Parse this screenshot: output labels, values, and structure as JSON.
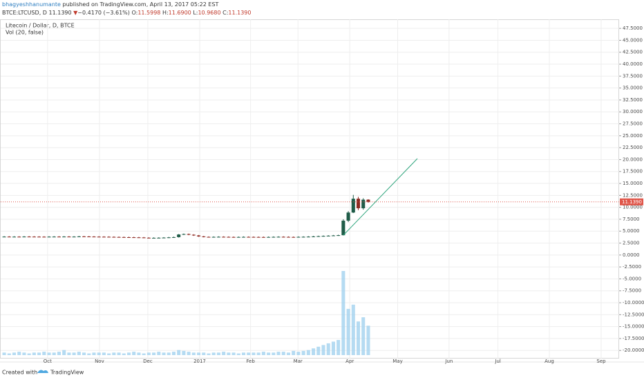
{
  "header": {
    "author": "bhagyeshhanumante",
    "published": "published on TradingView.com, April 13, 2017 05:22 EST",
    "symbol": "BTCE:LTCUSD, D",
    "price": "11.1390",
    "arrow": "▼",
    "change": "−0.4170 (−3.61%)",
    "ohlc": [
      {
        "label": "O:",
        "value": "11.5998"
      },
      {
        "label": "H:",
        "value": "11.6900"
      },
      {
        "label": "L:",
        "value": "10.9680"
      },
      {
        "label": "C:",
        "value": "11.1390"
      }
    ]
  },
  "footer": {
    "text": "Created with",
    "brand": "TradingView"
  },
  "chart_data": {
    "type": "candlestick",
    "title": "Litecoin / Dollar, D, BTCE",
    "subtitle": "Vol (20, false)",
    "last_price_label": "11.1390",
    "up_color": "#1f5c48",
    "down_color": "#8e2a22",
    "volume_color": "#9ccfee",
    "grid": true,
    "categories": [
      null,
      null,
      null,
      null,
      null,
      null,
      null,
      null,
      null,
      null,
      null,
      null,
      null,
      null,
      null,
      null,
      null,
      null,
      null,
      null,
      null,
      null,
      null,
      null,
      null,
      null,
      null,
      null,
      null,
      null,
      null,
      null,
      null,
      null,
      null,
      null,
      null,
      null,
      null,
      null,
      null,
      null,
      null,
      null,
      null,
      null,
      null,
      null,
      null,
      null,
      null,
      null,
      null,
      null,
      null,
      null,
      null,
      null,
      null,
      null,
      null,
      null,
      null,
      null,
      null,
      null,
      null,
      null,
      null,
      null,
      null,
      null,
      null,
      null
    ],
    "open": [
      3.84,
      3.85,
      3.83,
      3.84,
      3.82,
      3.86,
      3.85,
      3.84,
      3.83,
      3.82,
      3.84,
      3.85,
      3.83,
      3.86,
      3.84,
      3.85,
      3.9,
      3.88,
      3.86,
      3.84,
      3.83,
      3.82,
      3.8,
      3.78,
      3.76,
      3.74,
      3.72,
      3.7,
      3.68,
      3.62,
      3.58,
      3.6,
      3.62,
      3.65,
      3.7,
      3.75,
      4.3,
      4.4,
      4.25,
      4.1,
      3.9,
      3.8,
      3.78,
      3.8,
      3.82,
      3.8,
      3.78,
      3.76,
      3.78,
      3.8,
      3.79,
      3.78,
      3.77,
      3.76,
      3.78,
      3.8,
      3.82,
      3.8,
      3.78,
      3.76,
      3.8,
      3.82,
      3.85,
      3.9,
      3.95,
      4.0,
      4.05,
      4.1,
      4.15,
      7.2,
      8.9,
      11.8,
      9.8,
      11.5998
    ],
    "high": [
      3.95,
      3.95,
      3.94,
      3.94,
      3.96,
      3.96,
      3.95,
      3.94,
      3.93,
      3.94,
      3.95,
      3.95,
      3.96,
      3.96,
      3.95,
      4.0,
      4.0,
      3.98,
      3.96,
      3.94,
      3.93,
      3.92,
      3.9,
      3.88,
      3.86,
      3.84,
      3.82,
      3.8,
      3.78,
      3.72,
      3.7,
      3.72,
      3.75,
      3.8,
      3.85,
      4.4,
      4.5,
      4.5,
      4.35,
      4.2,
      4.0,
      3.9,
      3.9,
      3.92,
      3.92,
      3.9,
      3.88,
      3.88,
      3.9,
      3.9,
      3.89,
      3.88,
      3.87,
      3.88,
      3.9,
      3.92,
      3.92,
      3.9,
      3.88,
      3.9,
      3.92,
      3.95,
      4.0,
      4.05,
      4.1,
      4.15,
      4.2,
      4.25,
      7.5,
      9.2,
      12.6,
      12.2,
      11.9,
      11.69
    ],
    "low": [
      3.74,
      3.73,
      3.73,
      3.72,
      3.72,
      3.75,
      3.74,
      3.73,
      3.72,
      3.72,
      3.74,
      3.73,
      3.73,
      3.74,
      3.74,
      3.75,
      3.78,
      3.76,
      3.74,
      3.73,
      3.72,
      3.7,
      3.68,
      3.66,
      3.64,
      3.62,
      3.6,
      3.58,
      3.52,
      3.48,
      3.48,
      3.5,
      3.52,
      3.55,
      3.6,
      3.65,
      4.2,
      4.15,
      4.0,
      3.8,
      3.7,
      3.68,
      3.68,
      3.7,
      3.7,
      3.68,
      3.66,
      3.66,
      3.68,
      3.7,
      3.68,
      3.67,
      3.66,
      3.66,
      3.68,
      3.7,
      3.7,
      3.68,
      3.66,
      3.66,
      3.7,
      3.72,
      3.75,
      3.8,
      3.85,
      3.9,
      3.95,
      4.0,
      4.1,
      6.9,
      8.8,
      9.4,
      9.5,
      10.968
    ],
    "close": [
      3.85,
      3.83,
      3.84,
      3.82,
      3.86,
      3.85,
      3.84,
      3.83,
      3.82,
      3.84,
      3.85,
      3.83,
      3.86,
      3.84,
      3.85,
      3.9,
      3.88,
      3.86,
      3.84,
      3.83,
      3.82,
      3.8,
      3.78,
      3.76,
      3.74,
      3.72,
      3.7,
      3.68,
      3.62,
      3.58,
      3.6,
      3.62,
      3.65,
      3.7,
      3.75,
      4.3,
      4.4,
      4.25,
      4.1,
      3.9,
      3.8,
      3.78,
      3.8,
      3.82,
      3.8,
      3.78,
      3.76,
      3.78,
      3.8,
      3.79,
      3.78,
      3.77,
      3.76,
      3.78,
      3.8,
      3.82,
      3.8,
      3.78,
      3.76,
      3.8,
      3.82,
      3.85,
      3.9,
      3.95,
      4.0,
      4.05,
      4.1,
      4.15,
      7.2,
      8.9,
      11.8,
      9.8,
      11.6,
      11.139
    ],
    "volume": [
      3,
      2,
      3,
      4,
      3,
      2,
      3,
      3,
      4,
      3,
      3,
      4,
      6,
      3,
      3,
      4,
      3,
      2,
      3,
      3,
      3,
      2,
      3,
      3,
      2,
      3,
      4,
      3,
      2,
      3,
      3,
      4,
      3,
      3,
      4,
      6,
      5,
      4,
      3,
      3,
      3,
      2,
      3,
      3,
      4,
      3,
      3,
      2,
      3,
      3,
      3,
      3,
      4,
      3,
      3,
      4,
      4,
      3,
      5,
      4,
      5,
      6,
      8,
      10,
      12,
      14,
      16,
      18,
      100,
      55,
      60,
      40,
      45,
      35
    ],
    "vlim": [
      0,
      100
    ],
    "xlim": [
      -0.7,
      123.3
    ],
    "xticks": [
      {
        "value": 8.7,
        "label": "Oct"
      },
      {
        "value": 19.1,
        "label": "Nov"
      },
      {
        "value": 28.8,
        "label": "Dec"
      },
      {
        "value": 39.2,
        "label": "2017"
      },
      {
        "value": 49.4,
        "label": "Feb"
      },
      {
        "value": 58.9,
        "label": "Mar"
      },
      {
        "value": 69.3,
        "label": "Apr"
      },
      {
        "value": 78.9,
        "label": "May"
      },
      {
        "value": 89.2,
        "label": "Jun"
      },
      {
        "value": 99.0,
        "label": "Jul"
      },
      {
        "value": 109.3,
        "label": "Aug"
      },
      {
        "value": 119.7,
        "label": "Sep"
      }
    ],
    "ylim": [
      -21.7,
      49.4
    ],
    "yticks": [
      {
        "value": 47.5,
        "label": "47.5000"
      },
      {
        "value": 45,
        "label": "45.0000"
      },
      {
        "value": 42.5,
        "label": "42.5000"
      },
      {
        "value": 40,
        "label": "40.0000"
      },
      {
        "value": 37.5,
        "label": "37.5000"
      },
      {
        "value": 35,
        "label": "35.0000"
      },
      {
        "value": 32.5,
        "label": "32.5000"
      },
      {
        "value": 30,
        "label": "30.0000"
      },
      {
        "value": 27.5,
        "label": "27.5000"
      },
      {
        "value": 25,
        "label": "25.0000"
      },
      {
        "value": 22.5,
        "label": "22.5000"
      },
      {
        "value": 20,
        "label": "20.0000"
      },
      {
        "value": 17.5,
        "label": "17.5000"
      },
      {
        "value": 15,
        "label": "15.0000"
      },
      {
        "value": 12.5,
        "label": "12.5000"
      },
      {
        "value": 10,
        "label": "10.0000"
      },
      {
        "value": 7.5,
        "label": "7.5000"
      },
      {
        "value": 5,
        "label": "5.0000"
      },
      {
        "value": 2.5,
        "label": "2.5000"
      },
      {
        "value": 0,
        "label": "0.0000"
      },
      {
        "value": -2.5,
        "label": "-2.5000"
      },
      {
        "value": -5,
        "label": "-5.0000"
      },
      {
        "value": -7.5,
        "label": "-7.5000"
      },
      {
        "value": -10,
        "label": "-10.0000"
      },
      {
        "value": -12.5,
        "label": "-12.5000"
      },
      {
        "value": -15,
        "label": "-15.0000"
      },
      {
        "value": -17.5,
        "label": "-17.5000"
      },
      {
        "value": -20,
        "label": "-20.0000"
      }
    ]
  }
}
